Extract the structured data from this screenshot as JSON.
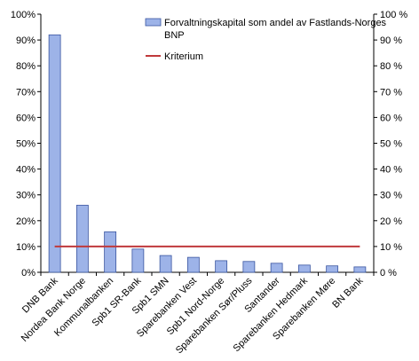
{
  "chart_data": {
    "type": "bar",
    "categories": [
      "DNB Bank",
      "Nordea Bank Norge",
      "Kommunalbanken",
      "Spb1 SR-Bank",
      "Spb1 SMN",
      "Sparebanken Vest",
      "Spb1 Nord-Norge",
      "Sparebanken Sør/Pluss",
      "Santander",
      "Sparebanken Hedmark",
      "Sparebanken Møre",
      "BN Bank"
    ],
    "series": [
      {
        "name": "Forvaltningskapital som andel av Fastlands-Norges BNP",
        "values": [
          92,
          26,
          15.7,
          9,
          6.5,
          5.8,
          4.5,
          4.2,
          3.5,
          2.8,
          2.5,
          2.1
        ],
        "color": "#9DB3E8"
      },
      {
        "name": "Kriterium",
        "type": "line",
        "value": 10,
        "color": "#C0393B"
      }
    ],
    "ylim": [
      0,
      100
    ],
    "yticks": [
      "0%",
      "10%",
      "20%",
      "30%",
      "40%",
      "50%",
      "60%",
      "70%",
      "80%",
      "90%",
      "100%"
    ],
    "yticks_right": [
      "0 %",
      "10 %",
      "20 %",
      "30 %",
      "40 %",
      "50 %",
      "60 %",
      "70 %",
      "80 %",
      "90 %",
      "100 %"
    ],
    "grid": false,
    "legend_position": "top-right"
  }
}
